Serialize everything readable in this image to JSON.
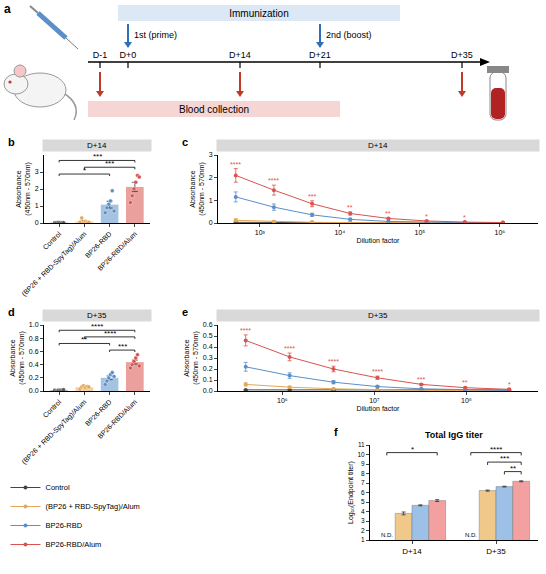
{
  "panel_a": {
    "letter": "a",
    "immunization": "Immunization",
    "prime": "1st (prime)",
    "boost": "2nd (boost)",
    "days": [
      "D-1",
      "D+0",
      "D+14",
      "D+21",
      "D+35"
    ],
    "blood": "Blood collection"
  },
  "chart_data": [
    {
      "panel": "b",
      "type": "bar",
      "title": "D+14",
      "ylabel": "Absorbance (450nm - 570nm)",
      "categories": [
        "Control",
        "(BP26 + RBD-SpyTag)/Alum",
        "BP26-RBD",
        "BP26-RBD/Alum"
      ],
      "values": [
        0.02,
        0.09,
        1.08,
        2.12
      ],
      "errors": [
        0.004,
        0.05,
        0.2,
        0.27
      ],
      "points": [
        [
          0.02,
          0.01,
          0.03,
          0.02,
          0.01,
          0.02
        ],
        [
          0.05,
          0.3,
          0.02,
          0.1,
          0.04,
          0.05
        ],
        [
          0.6,
          0.9,
          1.1,
          1.3,
          1.9,
          0.7
        ],
        [
          1.2,
          1.6,
          2.0,
          2.4,
          2.8,
          2.7
        ]
      ],
      "colors": [
        "#555555",
        "#e3a857",
        "#5b8fc9",
        "#d9534f"
      ],
      "ylim": [
        0,
        4
      ],
      "yticks": [
        0,
        1,
        2,
        3
      ],
      "brackets": [
        {
          "from": "Control",
          "to": "BP26-RBD",
          "label": "*"
        },
        {
          "from": "(BP26 + RBD-SpyTag)/Alum",
          "to": "BP26-RBD/Alum",
          "label": "***"
        },
        {
          "from": "Control",
          "to": "BP26-RBD/Alum",
          "label": "***"
        }
      ]
    },
    {
      "panel": "c",
      "type": "line",
      "title": "D+14",
      "xlabel": "Dilution factor",
      "ylabel": "Absorbance (450nm - 570nm)",
      "log": "x",
      "x": [
        500,
        1500,
        4500,
        13500,
        40500,
        121500,
        364500,
        1093500
      ],
      "xlim": [
        300,
        3000000
      ],
      "xticks": [
        {
          "value": 1000,
          "label": "10³"
        },
        {
          "value": 10000,
          "label": "10⁴"
        },
        {
          "value": 100000,
          "label": "10⁵"
        },
        {
          "value": 1000000,
          "label": "10⁶"
        }
      ],
      "ylim": [
        0,
        3
      ],
      "yticks": [
        0,
        1,
        2,
        3
      ],
      "legend": "bottom left",
      "series": [
        {
          "name": "Control",
          "color": "#444444",
          "values": [
            0.03,
            0.02,
            0.02,
            0.01,
            0.01,
            0.01,
            0.01,
            0.01
          ],
          "errors": [
            0.003,
            0.003,
            0.003,
            0.002,
            0.002,
            0.002,
            0.002,
            0.002
          ]
        },
        {
          "name": "(BP26 + RBD-SpyTag)/Alum",
          "color": "#e3a857",
          "values": [
            0.12,
            0.06,
            0.03,
            0.02,
            0.01,
            0.01,
            0.01,
            0.01
          ],
          "errors": [
            0.06,
            0.03,
            0.01,
            0.005,
            0.003,
            0.002,
            0.002,
            0.002
          ]
        },
        {
          "name": "BP26-RBD",
          "color": "#5b8fc9",
          "values": [
            1.15,
            0.7,
            0.36,
            0.16,
            0.07,
            0.03,
            0.02,
            0.01
          ],
          "errors": [
            0.22,
            0.14,
            0.07,
            0.03,
            0.015,
            0.006,
            0.004,
            0.002
          ]
        },
        {
          "name": "BP26-RBD/Alum",
          "color": "#d9534f",
          "values": [
            2.1,
            1.45,
            0.85,
            0.42,
            0.2,
            0.09,
            0.04,
            0.02
          ],
          "errors": [
            0.3,
            0.22,
            0.13,
            0.07,
            0.03,
            0.015,
            0.008,
            0.004
          ],
          "significance": [
            "****",
            "****",
            "***",
            "**",
            "**",
            "*",
            "*",
            null
          ]
        }
      ]
    },
    {
      "panel": "d",
      "type": "bar",
      "title": "D+35",
      "ylabel": "Absorbance (450nm - 570nm)",
      "categories": [
        "Control",
        "(BP26 + RBD-SpyTag)/Alum",
        "BP26-RBD",
        "BP26-RBD/Alum"
      ],
      "values": [
        0.01,
        0.058,
        0.2,
        0.438
      ],
      "errors": [
        0.003,
        0.007,
        0.028,
        0.03
      ],
      "points": [
        [
          0.01,
          0.0,
          0.01,
          0.01,
          0.01,
          0.02
        ],
        [
          0.03,
          0.06,
          0.08,
          0.05,
          0.07,
          0.06
        ],
        [
          0.1,
          0.15,
          0.2,
          0.25,
          0.28,
          0.22
        ],
        [
          0.35,
          0.4,
          0.45,
          0.5,
          0.55,
          0.38
        ]
      ],
      "colors": [
        "#555555",
        "#e3a857",
        "#5b8fc9",
        "#d9534f"
      ],
      "ylim": [
        0,
        1
      ],
      "yticks": [
        {
          "value": 0,
          "label": "0.0"
        },
        0.2,
        0.4,
        0.6,
        0.8,
        {
          "value": 1,
          "label": "1.0"
        }
      ],
      "brackets": [
        {
          "from": "BP26-RBD",
          "to": "BP26-RBD/Alum",
          "label": "***"
        },
        {
          "from": "Control",
          "to": "BP26-RBD",
          "label": "**"
        },
        {
          "from": "(BP26 + RBD-SpyTag)/Alum",
          "to": "BP26-RBD/Alum",
          "label": "****"
        },
        {
          "from": "Control",
          "to": "BP26-RBD/Alum",
          "label": "****"
        }
      ]
    },
    {
      "panel": "e",
      "type": "line",
      "title": "D+35",
      "xlabel": "Dilution factor",
      "ylabel": "Absorbance (450nm - 570nm)",
      "log": "x",
      "x": [
        400000,
        1200000,
        3600000,
        10800000,
        32400000,
        97200000,
        291600000
      ],
      "xlim": [
        200000,
        600000000
      ],
      "xticks": [
        {
          "value": 1000000,
          "label": "10⁶"
        },
        {
          "value": 10000000,
          "label": "10⁷"
        },
        {
          "value": 100000000,
          "label": "10⁸"
        }
      ],
      "ylim": [
        0,
        0.6
      ],
      "yticks": [
        {
          "value": 0,
          "label": "0.0"
        },
        0.1,
        0.2,
        0.3,
        0.4,
        0.5,
        0.6
      ],
      "series": [
        {
          "name": "Control",
          "color": "#444444",
          "values": [
            0.01,
            0.01,
            0.01,
            0.01,
            0.01,
            0.01,
            0.01
          ],
          "errors": [
            0.002,
            0.002,
            0.002,
            0.002,
            0.002,
            0.002,
            0.002
          ]
        },
        {
          "name": "(BP26 + RBD-SpyTag)/Alum",
          "color": "#e3a857",
          "values": [
            0.06,
            0.035,
            0.02,
            0.01,
            0.005,
            0.003,
            0.002
          ],
          "errors": [
            0.015,
            0.008,
            0.004,
            0.002,
            0.001,
            0.001,
            0.001
          ]
        },
        {
          "name": "BP26-RBD",
          "color": "#5b8fc9",
          "values": [
            0.22,
            0.14,
            0.08,
            0.04,
            0.02,
            0.01,
            0.005
          ],
          "errors": [
            0.04,
            0.025,
            0.015,
            0.008,
            0.004,
            0.002,
            0.001
          ]
        },
        {
          "name": "BP26-RBD/Alum",
          "color": "#d9534f",
          "values": [
            0.46,
            0.31,
            0.2,
            0.12,
            0.06,
            0.03,
            0.015
          ],
          "errors": [
            0.05,
            0.035,
            0.025,
            0.015,
            0.008,
            0.004,
            0.003
          ],
          "significance": [
            "****",
            "****",
            "****",
            "****",
            "***",
            "**",
            "*"
          ]
        }
      ]
    },
    {
      "panel": "f",
      "type": "bar",
      "title": "Total IgG titer",
      "ylabel": "Log₁₀(Endpoint titer)",
      "categories": [
        "D+14",
        "D+35"
      ],
      "series": [
        {
          "name": "Control",
          "color": "#cccccc",
          "values": [
            null,
            null
          ],
          "errors": [
            null,
            null
          ]
        },
        {
          "name": "(BP26 + RBD-SpyTag)/Alum",
          "color": "#f0c98a",
          "values": [
            3.8,
            6.2
          ],
          "errors": [
            0.15,
            0.06
          ]
        },
        {
          "name": "BP26-RBD",
          "color": "#9cc0e6",
          "values": [
            4.65,
            6.62
          ],
          "errors": [
            0.05,
            0.04
          ]
        },
        {
          "name": "BP26-RBD/Alum",
          "color": "#f2a0a0",
          "values": [
            5.15,
            7.18
          ],
          "errors": [
            0.1,
            0.05
          ]
        }
      ],
      "ylim": [
        1,
        11
      ],
      "yticks": [
        1,
        2,
        3,
        4,
        5,
        6,
        7,
        8,
        9,
        10,
        11
      ],
      "annotations": [
        {
          "category": "D+14",
          "series": "Control",
          "text": "N.D."
        },
        {
          "category": "D+35",
          "series": "Control",
          "text": "N.D."
        }
      ],
      "brackets": [
        {
          "category": "D+14",
          "from": "Control",
          "to": "BP26-RBD/Alum",
          "label": "*"
        },
        {
          "category": "D+35",
          "from": "BP26-RBD",
          "to": "BP26-RBD/Alum",
          "label": "**"
        },
        {
          "category": "D+35",
          "from": "(BP26 + RBD-SpyTag)/Alum",
          "to": "BP26-RBD/Alum",
          "label": "***"
        },
        {
          "category": "D+35",
          "from": "Control",
          "to": "BP26-RBD/Alum",
          "label": "****"
        }
      ]
    }
  ]
}
